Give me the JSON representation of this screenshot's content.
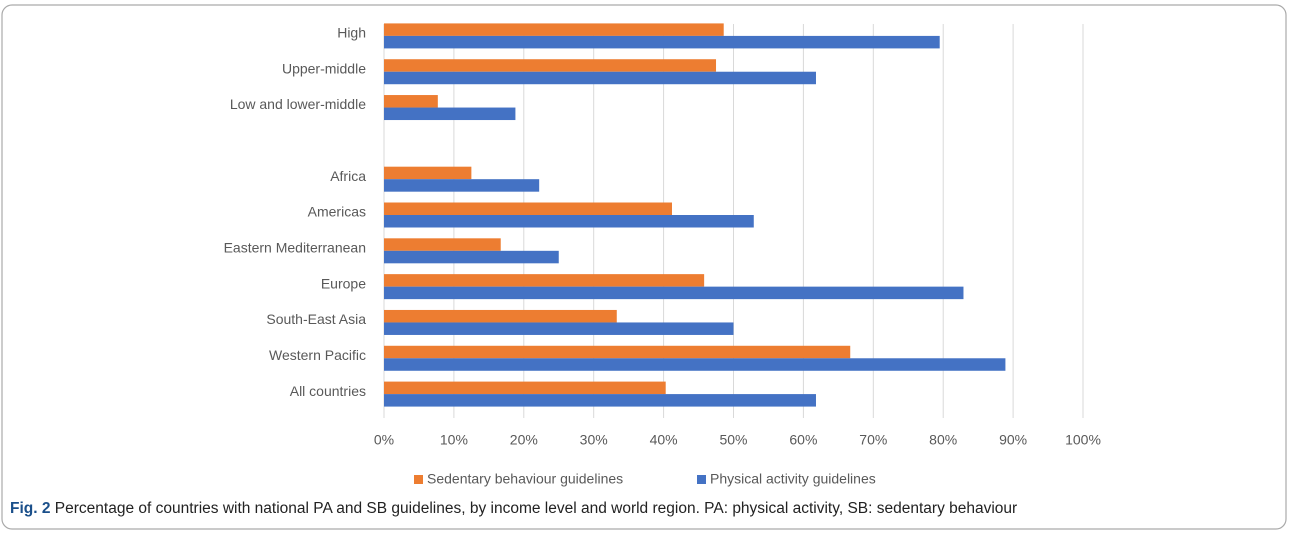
{
  "chart_data": {
    "type": "hbar",
    "categories": [
      "High",
      "Upper-middle",
      "Low and lower-middle",
      null,
      "Africa",
      "Americas",
      "Eastern Mediterranean",
      "Europe",
      "South-East Asia",
      "Western Pacific",
      "All countries"
    ],
    "series": [
      {
        "name": "Sedentary behaviour guidelines",
        "color": "#ed7d31",
        "values": [
          48.6,
          47.5,
          7.7,
          null,
          12.5,
          41.2,
          16.7,
          45.8,
          33.3,
          66.7,
          40.3
        ]
      },
      {
        "name": "Physical activity guidelines",
        "color": "#4472c4",
        "values": [
          79.5,
          61.8,
          18.8,
          null,
          22.2,
          52.9,
          25,
          82.9,
          50,
          88.9,
          61.8
        ]
      }
    ],
    "xlim": [
      0,
      100
    ],
    "xticks": [
      {
        "value": 0,
        "label": "0%"
      },
      {
        "value": 10,
        "label": "10%"
      },
      {
        "value": 20,
        "label": "20%"
      },
      {
        "value": 30,
        "label": "30%"
      },
      {
        "value": 40,
        "label": "40%"
      },
      {
        "value": 50,
        "label": "50%"
      },
      {
        "value": 60,
        "label": "60%"
      },
      {
        "value": 70,
        "label": "70%"
      },
      {
        "value": 80,
        "label": "80%"
      },
      {
        "value": 90,
        "label": "90%"
      },
      {
        "value": 100,
        "label": "100%"
      }
    ],
    "grid": true,
    "legend": "bottom"
  },
  "caption": {
    "label": "Fig. 2",
    "text": "Percentage of countries with national PA and SB guidelines, by income level and world region. PA: physical activity, SB: sedentary behaviour"
  }
}
